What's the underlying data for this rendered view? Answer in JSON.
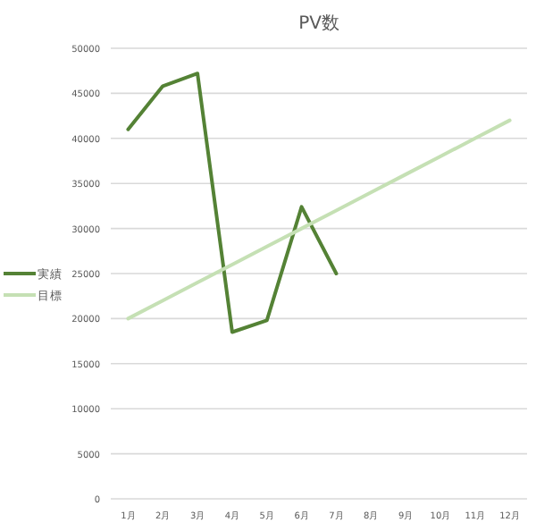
{
  "chart_data": {
    "type": "line",
    "title": "PV数",
    "categories": [
      "1月",
      "2月",
      "3月",
      "4月",
      "5月",
      "6月",
      "7月",
      "8月",
      "9月",
      "10月",
      "11月",
      "12月"
    ],
    "series": [
      {
        "name": "実績",
        "color": "#548235",
        "values": [
          41000,
          45800,
          47200,
          18500,
          19800,
          32400,
          25000,
          null,
          null,
          null,
          null,
          null
        ]
      },
      {
        "name": "目標",
        "color": "#c5e0b4",
        "values": [
          20000,
          22000,
          24000,
          26000,
          28000,
          30000,
          32000,
          34000,
          36000,
          38000,
          40000,
          42000
        ]
      }
    ],
    "ylim": [
      0,
      50000
    ],
    "yticks": [
      0,
      5000,
      10000,
      15000,
      20000,
      25000,
      30000,
      35000,
      40000,
      45000,
      50000
    ],
    "grid": "y",
    "legend": "left",
    "marker": "none",
    "line_style": "solid"
  }
}
